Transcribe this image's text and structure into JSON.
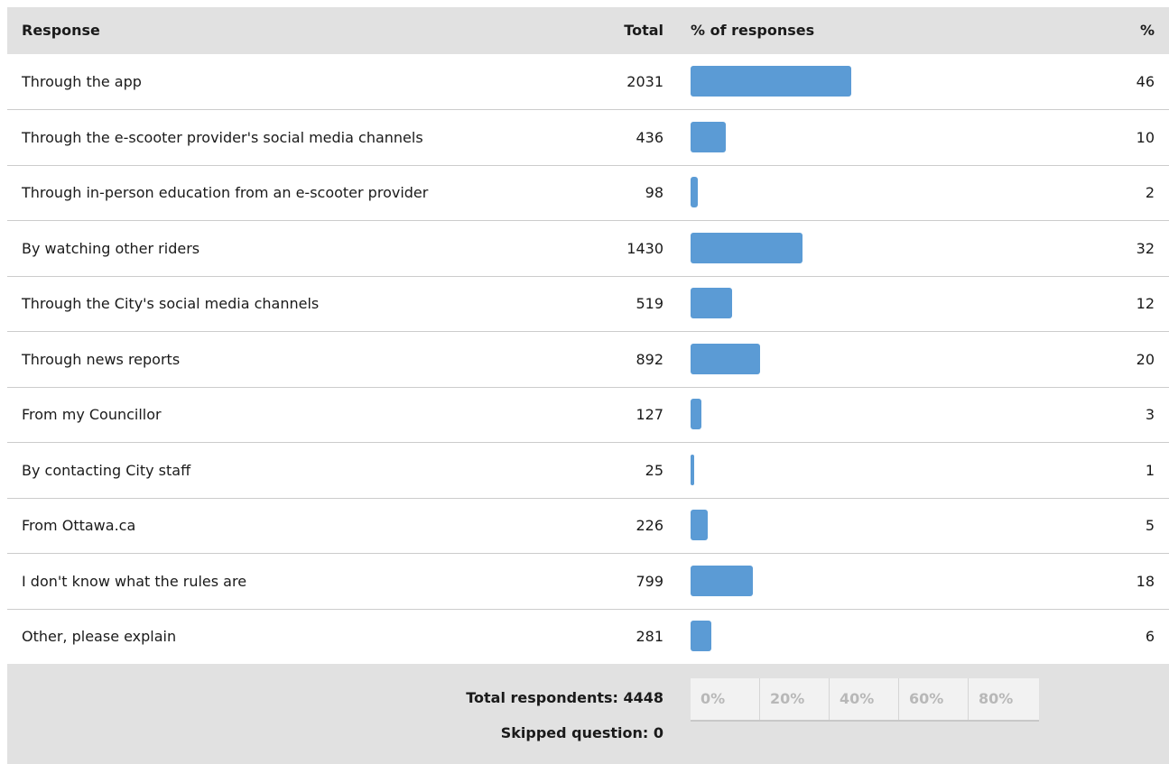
{
  "header": {
    "response": "Response",
    "total": "Total",
    "pct_responses": "% of responses",
    "pct": "%"
  },
  "chart_data": {
    "type": "bar",
    "orientation": "horizontal",
    "categories": [
      "Through the app",
      "Through the e-scooter provider's social media channels",
      "Through in-person education from an e-scooter provider",
      "By watching other riders",
      "Through the City's social media channels",
      "Through news reports",
      "From my Councillor",
      "By contacting City staff",
      "From Ottawa.ca",
      "I don't know what the rules are",
      "Other, please explain"
    ],
    "totals": [
      2031,
      436,
      98,
      1430,
      519,
      892,
      127,
      25,
      226,
      799,
      281
    ],
    "values": [
      46,
      10,
      2,
      32,
      12,
      20,
      3,
      1,
      5,
      18,
      6
    ],
    "xlim": [
      0,
      100
    ],
    "x_ticks": [
      "0%",
      "20%",
      "40%",
      "60%",
      "80%"
    ],
    "bar_color": "#5b9bd5"
  },
  "footer": {
    "total_respondents": "Total respondents: 4448",
    "skipped": "Skipped question: 0"
  }
}
